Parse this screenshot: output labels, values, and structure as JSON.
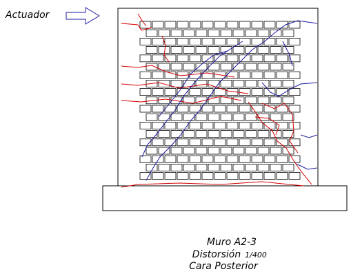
{
  "labels": {
    "actuator": "Actuador"
  },
  "caption": {
    "title": "Muro A2-3",
    "distortion_label": "Distorsión",
    "distortion_value": "1/400",
    "face": "Cara Posterior"
  }
}
